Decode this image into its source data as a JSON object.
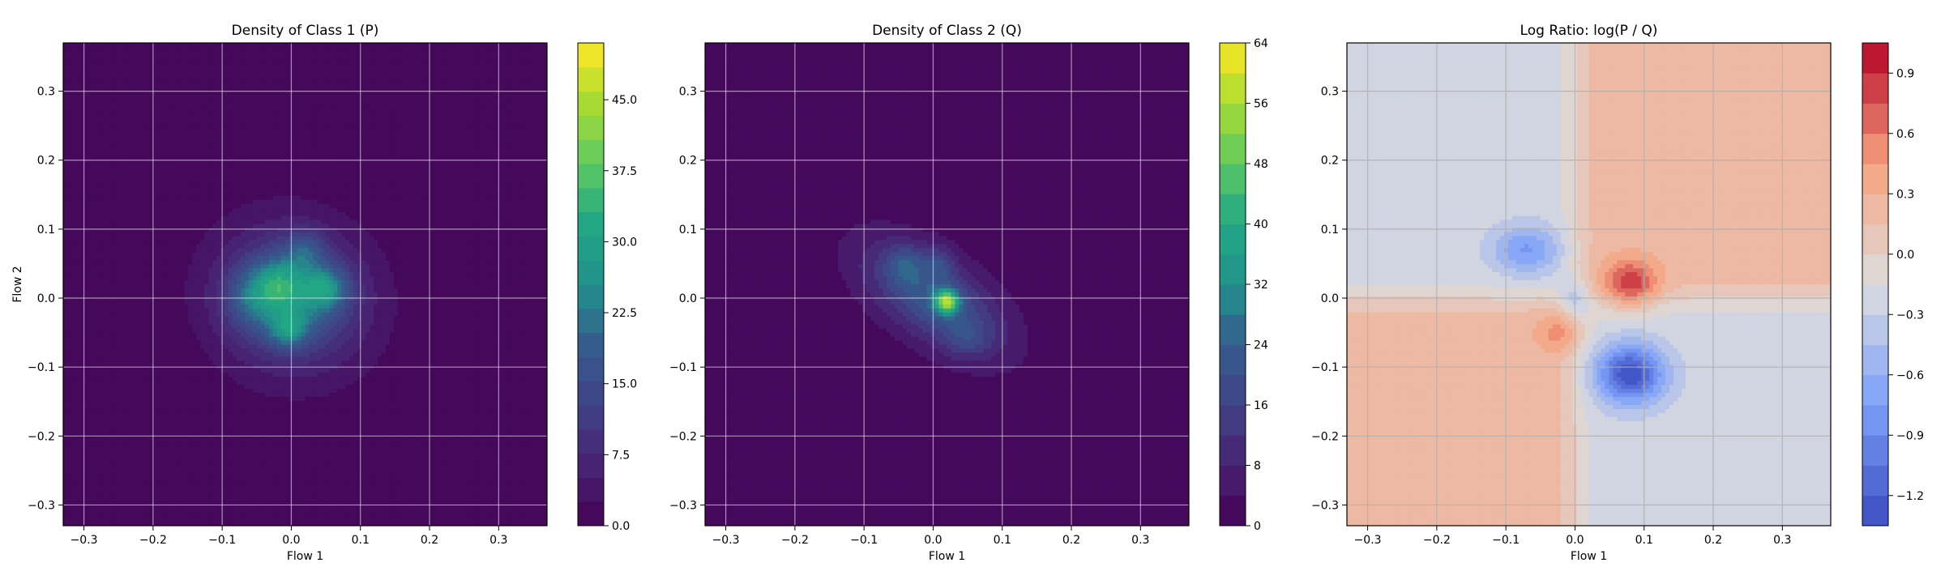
{
  "chart_data": [
    {
      "type": "heatmap",
      "title": "Density of Class 1 (P)",
      "xlabel": "Flow 1",
      "ylabel": "Flow 2",
      "xlim": [
        -0.33,
        0.37
      ],
      "ylim": [
        -0.33,
        0.37
      ],
      "xticks": [
        -0.3,
        -0.2,
        -0.1,
        0.0,
        0.1,
        0.2,
        0.3
      ],
      "yticks": [
        -0.3,
        -0.2,
        -0.1,
        0.0,
        0.1,
        0.2,
        0.3
      ],
      "xtick_labels": [
        "−0.3",
        "−0.2",
        "−0.1",
        "0.0",
        "0.1",
        "0.2",
        "0.3"
      ],
      "ytick_labels": [
        "−0.3",
        "−0.2",
        "−0.1",
        "0.0",
        "0.1",
        "0.2",
        "0.3"
      ],
      "grid": true,
      "colormap": "viridis",
      "colorbar": {
        "min": 0,
        "max": 51,
        "ticks": [
          0,
          7.5,
          15,
          22.5,
          30,
          37.5,
          45
        ],
        "tick_labels": [
          "0.0",
          "7.5",
          "15.0",
          "22.5",
          "30.0",
          "37.5",
          "45.0"
        ],
        "levels": 20
      },
      "blobs": [
        {
          "x": 0.0,
          "y": 0.0,
          "sx": 0.1,
          "sy": 0.1,
          "rho": -0.1,
          "peak": 6
        },
        {
          "x": 0.0,
          "y": 0.0,
          "sx": 0.06,
          "sy": 0.055,
          "rho": 0.0,
          "peak": 18
        },
        {
          "x": -0.02,
          "y": 0.02,
          "sx": 0.025,
          "sy": 0.025,
          "rho": 0.0,
          "peak": 12
        },
        {
          "x": 0.05,
          "y": 0.015,
          "sx": 0.022,
          "sy": 0.02,
          "rho": 0.0,
          "peak": 14
        },
        {
          "x": -0.005,
          "y": -0.045,
          "sx": 0.018,
          "sy": 0.018,
          "rho": 0.0,
          "peak": 13
        },
        {
          "x": 0.02,
          "y": 0.07,
          "sx": 0.02,
          "sy": 0.02,
          "rho": 0.0,
          "peak": 8
        },
        {
          "x": -0.06,
          "y": 0.0,
          "sx": 0.025,
          "sy": 0.03,
          "rho": 0.0,
          "peak": 7
        }
      ]
    },
    {
      "type": "heatmap",
      "title": "Density of Class 2 (Q)",
      "xlabel": "Flow 1",
      "ylabel": "",
      "xlim": [
        -0.33,
        0.37
      ],
      "ylim": [
        -0.33,
        0.37
      ],
      "xticks": [
        -0.3,
        -0.2,
        -0.1,
        0.0,
        0.1,
        0.2,
        0.3
      ],
      "yticks": [
        -0.3,
        -0.2,
        -0.1,
        0.0,
        0.1,
        0.2,
        0.3
      ],
      "xtick_labels": [
        "−0.3",
        "−0.2",
        "−0.1",
        "0.0",
        "0.1",
        "0.2",
        "0.3"
      ],
      "ytick_labels": [
        "−0.3",
        "−0.2",
        "−0.1",
        "0.0",
        "0.1",
        "0.2",
        "0.3"
      ],
      "grid": true,
      "colormap": "viridis",
      "colorbar": {
        "min": 0,
        "max": 64,
        "ticks": [
          0,
          8,
          16,
          24,
          32,
          40,
          48,
          56,
          64
        ],
        "tick_labels": [
          "0",
          "8",
          "16",
          "24",
          "32",
          "40",
          "48",
          "56",
          "64"
        ],
        "levels": 16
      },
      "blobs": [
        {
          "x": 0.0,
          "y": 0.0,
          "sx": 0.1,
          "sy": 0.085,
          "rho": -0.6,
          "peak": 6
        },
        {
          "x": 0.0,
          "y": 0.0,
          "sx": 0.065,
          "sy": 0.05,
          "rho": -0.55,
          "peak": 17
        },
        {
          "x": 0.02,
          "y": -0.005,
          "sx": 0.012,
          "sy": 0.012,
          "rho": 0.0,
          "peak": 38
        },
        {
          "x": -0.04,
          "y": 0.05,
          "sx": 0.02,
          "sy": 0.02,
          "rho": 0.0,
          "peak": 10
        },
        {
          "x": 0.01,
          "y": 0.05,
          "sx": 0.015,
          "sy": 0.018,
          "rho": 0.0,
          "peak": 9
        },
        {
          "x": 0.05,
          "y": -0.06,
          "sx": 0.025,
          "sy": 0.02,
          "rho": 0.0,
          "peak": 7
        }
      ]
    },
    {
      "type": "heatmap",
      "title": "Log Ratio: log(P / Q)",
      "xlabel": "Flow 1",
      "ylabel": "",
      "xlim": [
        -0.33,
        0.37
      ],
      "ylim": [
        -0.33,
        0.37
      ],
      "xticks": [
        -0.3,
        -0.2,
        -0.1,
        0.0,
        0.1,
        0.2,
        0.3
      ],
      "yticks": [
        -0.3,
        -0.2,
        -0.1,
        0.0,
        0.1,
        0.2,
        0.3
      ],
      "xtick_labels": [
        "−0.3",
        "−0.2",
        "−0.1",
        "0.0",
        "0.1",
        "0.2",
        "0.3"
      ],
      "ytick_labels": [
        "−0.3",
        "−0.2",
        "−0.1",
        "0.0",
        "0.1",
        "0.2",
        "0.3"
      ],
      "grid": true,
      "colormap": "coolwarm",
      "colorbar": {
        "min": -1.35,
        "max": 1.05,
        "ticks": [
          -1.2,
          -0.9,
          -0.6,
          -0.3,
          0.0,
          0.3,
          0.6,
          0.9
        ],
        "tick_labels": [
          "−1.2",
          "−0.9",
          "−0.6",
          "−0.3",
          "0.0",
          "0.3",
          "0.6",
          "0.9"
        ],
        "levels": 16
      },
      "background": {
        "quadrants_positive": "top-right and bottom-left",
        "quadrants_negative": "top-left and bottom-right",
        "level": 0.22
      },
      "blobs": [
        {
          "x": 0.08,
          "y": 0.02,
          "sx": 0.028,
          "sy": 0.025,
          "rho": 0.0,
          "peak": 0.7
        },
        {
          "x": -0.02,
          "y": -0.05,
          "sx": 0.025,
          "sy": 0.02,
          "rho": 0.0,
          "peak": 0.35
        },
        {
          "x": 0.08,
          "y": -0.11,
          "sx": 0.035,
          "sy": 0.03,
          "rho": 0.0,
          "peak": -1.1
        },
        {
          "x": -0.07,
          "y": 0.07,
          "sx": 0.035,
          "sy": 0.025,
          "rho": 0.0,
          "peak": -0.55
        },
        {
          "x": 0.0,
          "y": 0.0,
          "sx": 0.015,
          "sy": 0.02,
          "rho": 0.0,
          "peak": -0.35
        }
      ]
    }
  ]
}
